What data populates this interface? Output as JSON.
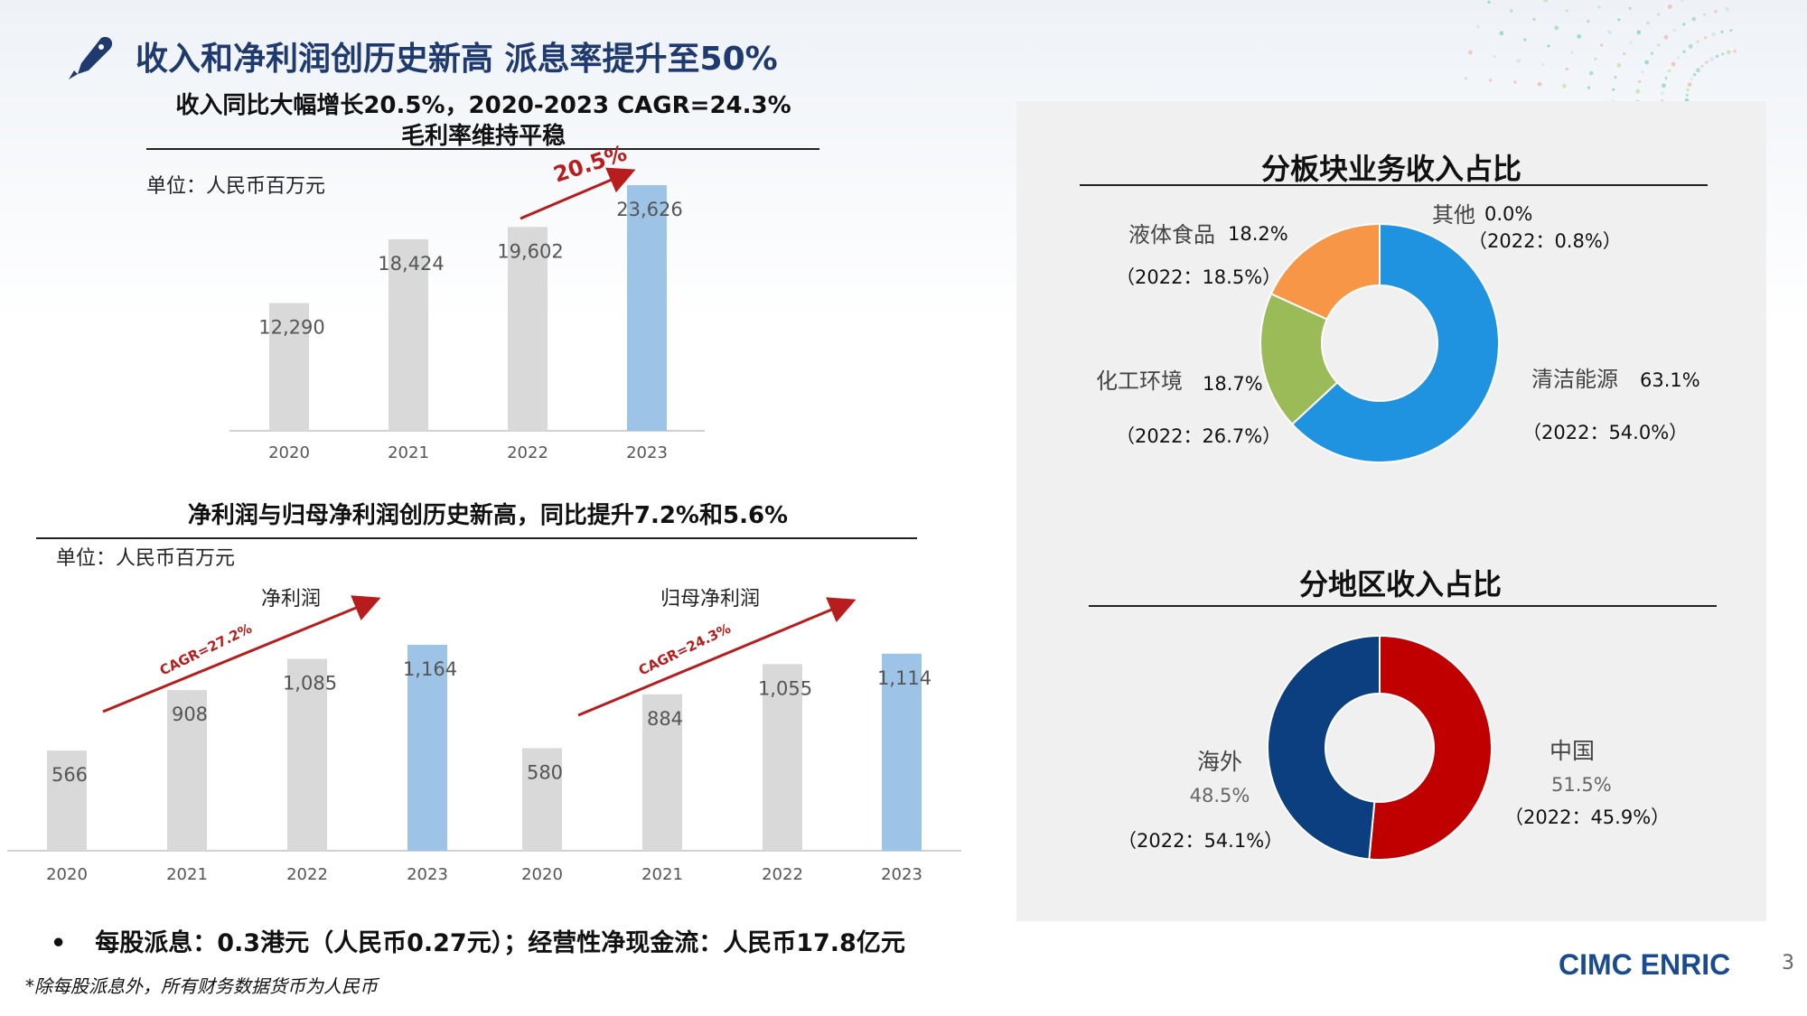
{
  "header": {
    "title": "收入和净利润创历史新高  派息率提升至50%"
  },
  "revenue_section": {
    "subtitle_line1": "收入同比大幅增长20.5%，2020-2023 CAGR=24.3%",
    "subtitle_line2": "毛利率维持平稳",
    "unit": "单位：人民币百万元",
    "growth_label": "20.5%"
  },
  "profit_section": {
    "subtitle": "净利润与归母净利润创历史新高，同比提升7.2%和5.6%",
    "unit": "单位：人民币百万元",
    "group1_label": "净利润",
    "group2_label": "归母净利润",
    "cagr1": "CAGR=27.2%",
    "cagr2": "CAGR=24.3%"
  },
  "segment_section": {
    "title": "分板块业务收入占比"
  },
  "region_section": {
    "title": "分地区收入占比"
  },
  "footer": {
    "bullet_mark": "•",
    "bullet_text": "每股派息：0.3港元（人民币0.27元）；经营性净现金流：人民币17.8亿元",
    "note": "*除每股派息外，所有财务数据货币为人民币",
    "brand": "CIMC ENRIC",
    "page_number": "3"
  },
  "colors": {
    "bar_gray": "#d9d9d9",
    "bar_blue": "#9dc3e6",
    "arrow_red": "#b81c1c",
    "title_blue": "#1f3a6e",
    "clean_energy": "#1f93e0",
    "chemical": "#9bbb59",
    "liquid_food": "#f79646",
    "china": "#c00000",
    "overseas": "#0b3f7f"
  },
  "chart_data": [
    {
      "type": "bar",
      "categories": [
        "2020",
        "2021",
        "2022",
        "2023"
      ],
      "values": [
        12290,
        18424,
        19602,
        23626
      ],
      "labels": [
        "12,290",
        "18,424",
        "19,602",
        "23,626"
      ],
      "highlight": "2023"
    },
    {
      "type": "bar",
      "groups": [
        {
          "name": "净利润",
          "categories": [
            "2020",
            "2021",
            "2022",
            "2023"
          ],
          "values": [
            566,
            908,
            1085,
            1164
          ],
          "labels": [
            "566",
            "908",
            "1,085",
            "1,164"
          ]
        },
        {
          "name": "归母净利润",
          "categories": [
            "2020",
            "2021",
            "2022",
            "2023"
          ],
          "values": [
            580,
            884,
            1055,
            1114
          ],
          "labels": [
            "580",
            "884",
            "1,055",
            "1,114"
          ]
        }
      ],
      "highlight": "2023"
    },
    {
      "type": "pie",
      "title": "分板块业务收入占比",
      "slices": [
        {
          "name": "清洁能源",
          "value": 63.1,
          "label": "63.1%",
          "prior": "（2022：54.0%）"
        },
        {
          "name": "化工环境",
          "value": 18.7,
          "label": "18.7%",
          "prior": "（2022：26.7%）"
        },
        {
          "name": "液体食品",
          "value": 18.2,
          "label": "18.2%",
          "prior": "（2022：18.5%）"
        },
        {
          "name": "其他",
          "value": 0.0,
          "label": "0.0%",
          "prior": "（2022：0.8%）"
        }
      ]
    },
    {
      "type": "pie",
      "title": "分地区收入占比",
      "slices": [
        {
          "name": "中国",
          "value": 51.5,
          "label": "51.5%",
          "prior": "（2022：45.9%）"
        },
        {
          "name": "海外",
          "value": 48.5,
          "label": "48.5%",
          "prior": "（2022：54.1%）"
        }
      ]
    }
  ]
}
